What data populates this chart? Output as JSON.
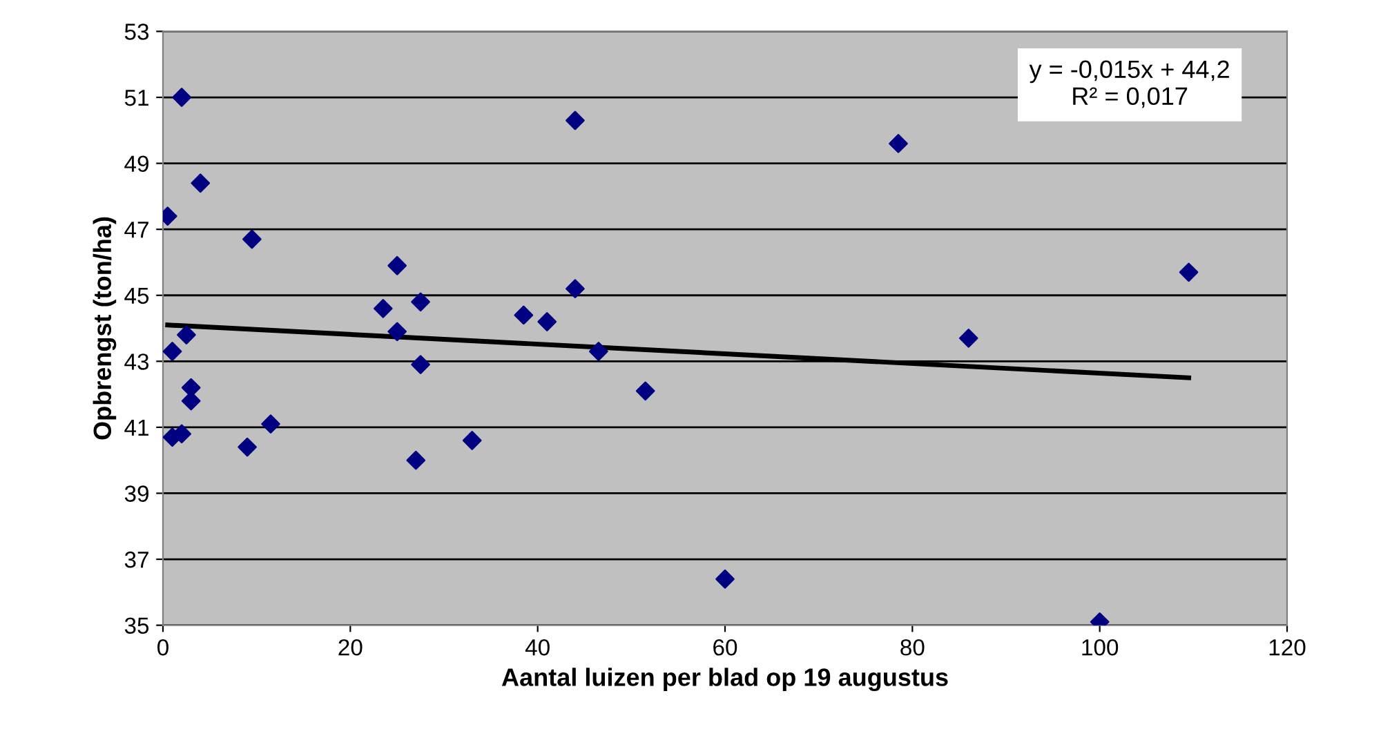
{
  "chart_data": {
    "type": "scatter",
    "xlabel": "Aantal luizen per blad op 19 augustus",
    "ylabel": "Opbrengst (ton/ha)",
    "xlim": [
      0,
      120
    ],
    "xticks": [
      0,
      20,
      40,
      60,
      80,
      100,
      120
    ],
    "ylim": [
      35,
      53
    ],
    "yticks": [
      35,
      37,
      39,
      41,
      43,
      45,
      47,
      49,
      51,
      53
    ],
    "grid": "y",
    "annotations": [
      "y = -0,015x + 44,2\nR² = 0,017"
    ],
    "series": [
      {
        "marker": "diamond",
        "color": "#000080",
        "x": [
          0.5,
          2,
          4,
          9.5,
          1,
          2.5,
          3,
          3,
          1,
          2,
          9,
          11.5,
          23.5,
          25,
          25,
          27.5,
          27.5,
          27,
          33,
          38.5,
          41,
          44,
          44,
          46.5,
          51.5,
          60,
          78.5,
          86,
          100,
          109.5
        ],
        "values": [
          47.4,
          51,
          48.4,
          46.7,
          43.3,
          43.8,
          42.2,
          41.8,
          40.7,
          40.8,
          40.4,
          41.1,
          44.6,
          45.9,
          43.9,
          44.8,
          42.9,
          40,
          40.6,
          44.4,
          44.2,
          50.3,
          45.2,
          43.3,
          42.1,
          36.4,
          49.6,
          43.7,
          35.1,
          45.7
        ]
      },
      {
        "type": "line",
        "marker": "none",
        "color": "#000000",
        "x": [
          0.5,
          109.5
        ],
        "values": [
          44.1,
          42.5
        ]
      }
    ]
  }
}
